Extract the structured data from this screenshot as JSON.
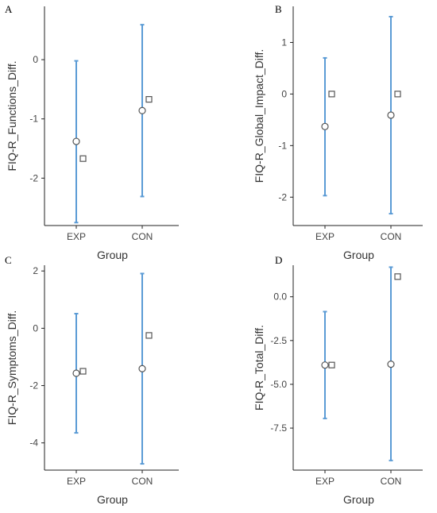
{
  "chart_data": [
    {
      "panel": "A",
      "type": "scatter",
      "categories": [
        "EXP",
        "CON"
      ],
      "xlabel": "Group",
      "ylabel": "FIQ-R_Functions_Diff.",
      "ylim": [
        -2.8,
        0.9
      ],
      "yticks": [
        0,
        -1,
        -2
      ],
      "ytick_labels": [
        "0",
        "-1",
        "-2"
      ],
      "mean": [
        -1.38,
        -0.86
      ],
      "ci_low": [
        -2.75,
        -2.31
      ],
      "ci_high": [
        -0.02,
        0.59
      ],
      "median": [
        -1.67,
        -0.67
      ]
    },
    {
      "panel": "B",
      "type": "scatter",
      "categories": [
        "EXP",
        "CON"
      ],
      "xlabel": "Group",
      "ylabel": "FIQ-R_Global_Impact_Diff.",
      "ylim": [
        -2.55,
        1.7
      ],
      "yticks": [
        1,
        0,
        -1,
        -2
      ],
      "ytick_labels": [
        "1",
        "0",
        "-1",
        "-2"
      ],
      "mean": [
        -0.63,
        -0.41
      ],
      "ci_low": [
        -1.97,
        -2.32
      ],
      "ci_high": [
        0.7,
        1.5
      ],
      "median": [
        0.0,
        0.0
      ]
    },
    {
      "panel": "C",
      "type": "scatter",
      "categories": [
        "EXP",
        "CON"
      ],
      "xlabel": "Group",
      "ylabel": "FIQ-R_Symptoms_Diff.",
      "ylim": [
        -4.95,
        2.2
      ],
      "yticks": [
        2,
        0,
        -2,
        -4
      ],
      "ytick_labels": [
        "2",
        "0",
        "-2",
        "-4"
      ],
      "mean": [
        -1.57,
        -1.41
      ],
      "ci_low": [
        -3.65,
        -4.73
      ],
      "ci_high": [
        0.51,
        1.91
      ],
      "median": [
        -1.5,
        -0.25
      ]
    },
    {
      "panel": "D",
      "type": "scatter",
      "categories": [
        "EXP",
        "CON"
      ],
      "xlabel": "Group",
      "ylabel": "FIQ-R_Total_Diff.",
      "ylim": [
        -9.9,
        1.8
      ],
      "yticks": [
        0.0,
        -2.5,
        -5.0,
        -7.5
      ],
      "ytick_labels": [
        "0.0",
        "-2.5",
        "-5.0",
        "-7.5"
      ],
      "mean": [
        -3.9,
        -3.85
      ],
      "ci_low": [
        -6.95,
        -9.35
      ],
      "ci_high": [
        -0.85,
        1.69
      ],
      "median": [
        -3.9,
        1.15
      ]
    }
  ],
  "colors": {
    "error_bar": "#5b9bd5",
    "marker_fill": "#ffffff",
    "marker_stroke": "#555555",
    "axis": "#222222"
  }
}
